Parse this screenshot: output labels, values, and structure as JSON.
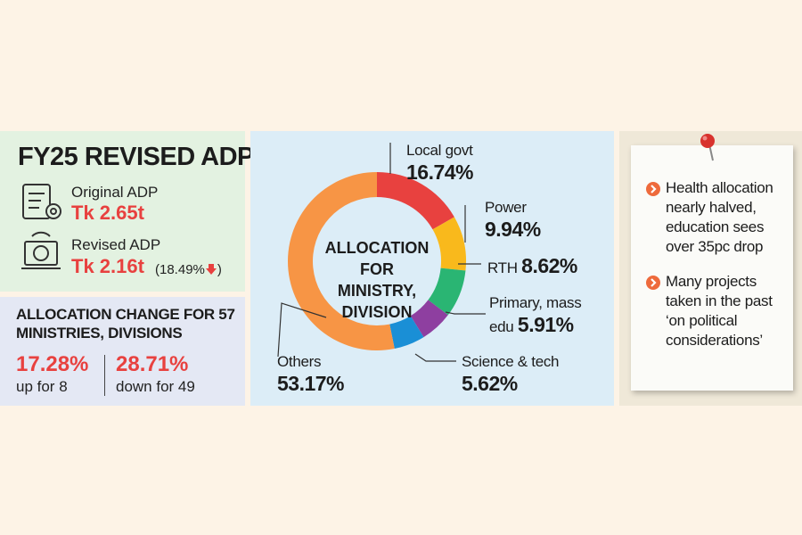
{
  "adp": {
    "title": "FY25 REVISED ADP",
    "original_label": "Original ADP",
    "original_value": "Tk 2.65t",
    "revised_label": "Revised ADP",
    "revised_value": "Tk 2.16t",
    "change_open": "(18.49%",
    "change_close": ")"
  },
  "allocation_change": {
    "title": "ALLOCATION CHANGE FOR 57 MINISTRIES, DIVISIONS",
    "up_value": "17.28%",
    "up_label": "up for 8",
    "down_value": "28.71%",
    "down_label": "down for 49"
  },
  "chart_data": {
    "type": "donut",
    "title": "ALLOCATION FOR MINISTRY, DIVISION",
    "categories": [
      "Local govt",
      "Power",
      "RTH",
      "Primary, mass edu",
      "Science & tech",
      "Others"
    ],
    "values": [
      16.74,
      9.94,
      8.62,
      5.91,
      5.62,
      53.17
    ],
    "value_labels": [
      "16.74%",
      "9.94%",
      "8.62%",
      "5.91%",
      "5.62%",
      "53.17%"
    ],
    "colors": [
      "#e8413f",
      "#f9b91c",
      "#2ab573",
      "#8e3fa0",
      "#1a8fd6",
      "#f79545"
    ]
  },
  "notes": {
    "bullets": [
      "Health allocation nearly halved, education sees over 35pc drop",
      "Many projects taken in the past ‘on political considerations’"
    ]
  }
}
